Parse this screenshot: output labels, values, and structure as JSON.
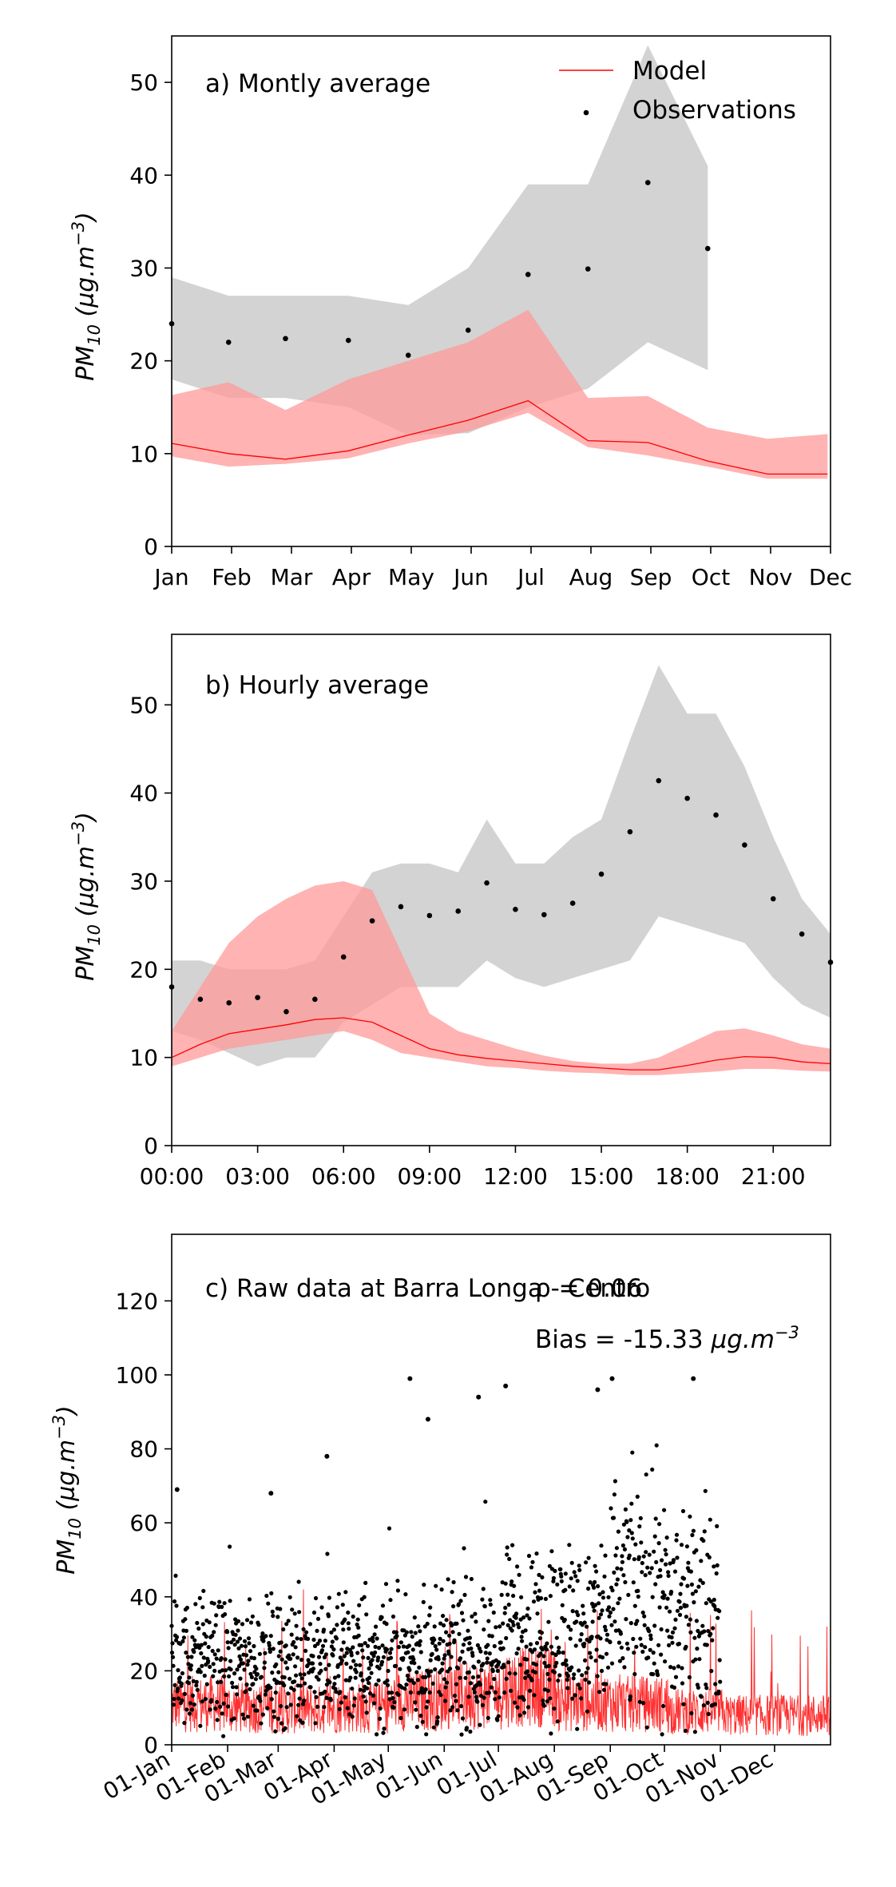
{
  "chart_data": [
    {
      "type": "line",
      "panel_label": "a) Montly average",
      "ylabel": "PM10 (µg.m−3)",
      "ylabel_main": "PM",
      "ylabel_sub": "10",
      "ylabel_unit": " (µg.m",
      "ylabel_exp": "−3",
      "ylabel_close": ")",
      "ylim": [
        0,
        55
      ],
      "yticks": [
        0,
        10,
        20,
        30,
        40,
        50
      ],
      "x_ticks": [
        "Jan",
        "Feb",
        "Mar",
        "Apr",
        "May",
        "Jun",
        "Jul",
        "Aug",
        "Sep",
        "Oct",
        "Nov",
        "Dec"
      ],
      "legend": {
        "model": "Model",
        "observations": "Observations",
        "placement": "top-right"
      },
      "colors": {
        "model": "#ff0000",
        "model_band": "#ff9999",
        "obs_band": "#c8c8c8",
        "obs": "#000000"
      },
      "series": [
        {
          "name": "Model",
          "x": [
            0,
            0.95,
            1.9,
            2.95,
            3.95,
            4.95,
            5.95,
            6.95,
            7.95,
            8.95,
            9.95,
            10.95
          ],
          "values": [
            11.1,
            10.0,
            9.4,
            10.3,
            12.0,
            13.6,
            15.7,
            11.4,
            11.2,
            9.2,
            7.8,
            7.8
          ],
          "lower": [
            9.7,
            8.6,
            8.9,
            9.5,
            11.1,
            12.4,
            14.4,
            10.7,
            9.8,
            8.6,
            7.3,
            7.3
          ],
          "upper": [
            16.3,
            17.7,
            14.7,
            18.0,
            20.0,
            22.0,
            25.5,
            16.0,
            16.2,
            12.8,
            11.6,
            12.1
          ]
        },
        {
          "name": "Observations",
          "x": [
            0,
            0.95,
            1.9,
            2.95,
            3.95,
            4.95,
            5.95,
            6.95,
            7.95,
            8.95
          ],
          "values": [
            24.0,
            22.0,
            22.4,
            22.2,
            20.6,
            23.3,
            29.3,
            29.9,
            39.2,
            32.1
          ],
          "lower": [
            18.0,
            16.0,
            16.0,
            15.0,
            12.0,
            12.2,
            15.0,
            17.0,
            22.0,
            19.0
          ],
          "upper": [
            29.0,
            27.0,
            27.0,
            27.0,
            26.0,
            30.0,
            39.0,
            39.0,
            54.0,
            41.0
          ]
        }
      ]
    },
    {
      "type": "line",
      "panel_label": "b) Hourly average",
      "ylabel": "PM10 (µg.m−3)",
      "ylim": [
        0,
        58
      ],
      "yticks": [
        0,
        10,
        20,
        30,
        40,
        50
      ],
      "xlim": [
        0,
        23
      ],
      "x_ticks": [
        "00:00",
        "03:00",
        "06:00",
        "09:00",
        "12:00",
        "15:00",
        "18:00",
        "21:00"
      ],
      "x_tick_positions": [
        0,
        3,
        6,
        9,
        12,
        15,
        18,
        21
      ],
      "series": [
        {
          "name": "Model",
          "x": [
            0,
            1,
            2,
            3,
            4,
            5,
            6,
            7,
            8,
            9,
            10,
            11,
            12,
            13,
            14,
            15,
            16,
            17,
            18,
            19,
            20,
            21,
            22,
            23
          ],
          "values": [
            10.0,
            11.5,
            12.7,
            13.2,
            13.7,
            14.3,
            14.5,
            14.0,
            12.5,
            11.0,
            10.3,
            9.9,
            9.6,
            9.3,
            9.0,
            8.8,
            8.6,
            8.6,
            9.1,
            9.7,
            10.1,
            10.0,
            9.5,
            9.3
          ],
          "lower": [
            9.0,
            10.0,
            11.0,
            11.5,
            12.0,
            12.5,
            13.0,
            12.0,
            10.5,
            10.0,
            9.5,
            9.0,
            8.8,
            8.5,
            8.3,
            8.2,
            8.0,
            8.0,
            8.2,
            8.4,
            8.7,
            8.7,
            8.5,
            8.4
          ],
          "upper": [
            13.0,
            18.0,
            23.0,
            26.0,
            28.0,
            29.5,
            30.0,
            29.0,
            22.0,
            15.0,
            13.0,
            12.0,
            11.0,
            10.2,
            9.6,
            9.3,
            9.3,
            10.0,
            11.5,
            13.0,
            13.3,
            12.5,
            11.5,
            11.0
          ]
        },
        {
          "name": "Observations",
          "x": [
            0,
            1,
            2,
            3,
            4,
            5,
            6,
            7,
            8,
            9,
            10,
            11,
            12,
            13,
            14,
            15,
            16,
            17,
            18,
            19,
            20,
            21,
            22,
            23
          ],
          "values": [
            18.0,
            16.6,
            16.2,
            16.8,
            15.2,
            16.6,
            21.4,
            25.5,
            27.1,
            26.1,
            26.6,
            29.8,
            26.8,
            26.2,
            27.5,
            30.8,
            35.6,
            41.4,
            39.4,
            37.5,
            34.1,
            28.0,
            24.0,
            20.8
          ],
          "lower": [
            13.0,
            12.0,
            10.5,
            9.0,
            10.0,
            10.0,
            14.0,
            16.0,
            18.0,
            18.0,
            18.0,
            21.0,
            19.0,
            18.0,
            19.0,
            20.0,
            21.0,
            26.0,
            25.0,
            24.0,
            23.0,
            19.0,
            16.0,
            14.5
          ],
          "upper": [
            21.0,
            21.0,
            20.0,
            20.0,
            20.0,
            21.0,
            26.0,
            31.0,
            32.0,
            32.0,
            31.0,
            37.0,
            32.0,
            32.0,
            35.0,
            37.0,
            46.0,
            54.5,
            49.0,
            49.0,
            43.0,
            35.0,
            28.0,
            24.0
          ]
        }
      ]
    },
    {
      "type": "scatter",
      "panel_label": "c) Raw data at Barra Longa - Centro",
      "rho_text": "ρ = 0.06",
      "bias_text": "Bias = -15.33 µg.m−3",
      "bias_main": "Bias = -15.33 ",
      "bias_unit": "µg.m",
      "bias_exp": "−3",
      "ylabel": "PM10 (µg.m−3)",
      "ylim": [
        0,
        138
      ],
      "yticks": [
        0,
        20,
        40,
        60,
        80,
        100,
        120
      ],
      "xlim": [
        0,
        365
      ],
      "x_ticks": [
        "01-Jan",
        "01-Feb",
        "01-Mar",
        "01-Apr",
        "01-May",
        "01-Jun",
        "01-Jul",
        "01-Aug",
        "01-Sep",
        "01-Oct",
        "01-Nov",
        "01-Dec"
      ],
      "x_tick_days": [
        0,
        31,
        59,
        90,
        120,
        151,
        181,
        212,
        243,
        273,
        304,
        334
      ],
      "observations_end_day": 304,
      "observation_outliers": [
        {
          "day": 3,
          "value": 69
        },
        {
          "day": 55,
          "value": 68
        },
        {
          "day": 86,
          "value": 78
        },
        {
          "day": 132,
          "value": 99
        },
        {
          "day": 142,
          "value": 88
        },
        {
          "day": 170,
          "value": 94
        },
        {
          "day": 185,
          "value": 97
        },
        {
          "day": 236,
          "value": 96
        },
        {
          "day": 244,
          "value": 99
        },
        {
          "day": 289,
          "value": 99
        }
      ]
    }
  ]
}
